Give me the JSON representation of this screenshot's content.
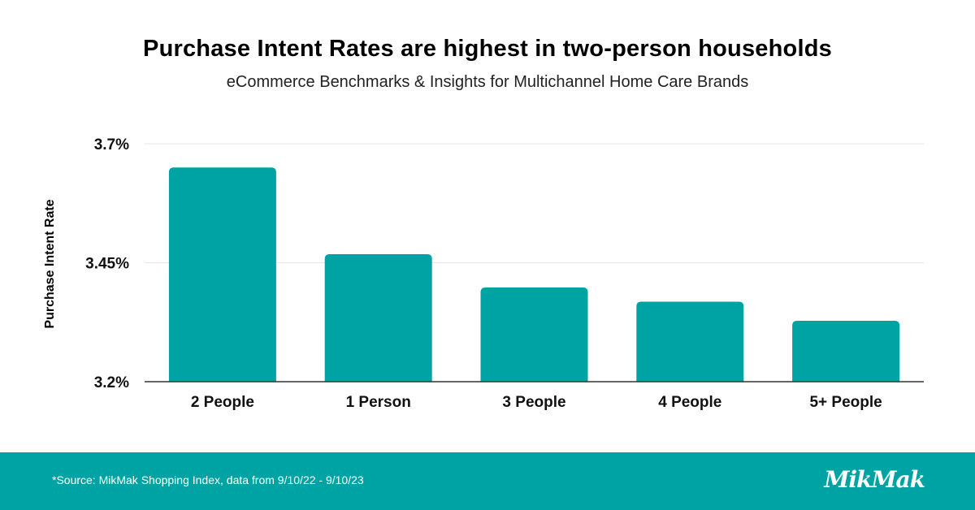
{
  "title": "Purchase Intent Rates are highest in two-person households",
  "subtitle": "eCommerce Benchmarks & Insights for Multichannel Home Care Brands",
  "footer": {
    "source": "*Source: MikMak Shopping Index, data from 9/10/22 - 9/10/23",
    "logo": "MikMak"
  },
  "colors": {
    "bar": "#00a3a3",
    "footer": "#00a3a3",
    "grid": "#e6e6e6",
    "axis": "#333333"
  },
  "chart_data": {
    "type": "bar",
    "title": "Purchase Intent Rates are highest in two-person households",
    "subtitle": "eCommerce Benchmarks & Insights for Multichannel Home Care Brands",
    "xlabel": "",
    "ylabel": "Purchase Intent Rate",
    "categories": [
      "2 People",
      "1 Person",
      "3 People",
      "4 People",
      "5+ People"
    ],
    "values": [
      3.65,
      3.468,
      3.398,
      3.368,
      3.328
    ],
    "ylim": [
      3.2,
      3.7
    ],
    "yticks": [
      3.2,
      3.45,
      3.7
    ],
    "ytick_labels": [
      "3.2%",
      "3.45%",
      "3.7%"
    ],
    "grid": true,
    "legend": "none"
  }
}
